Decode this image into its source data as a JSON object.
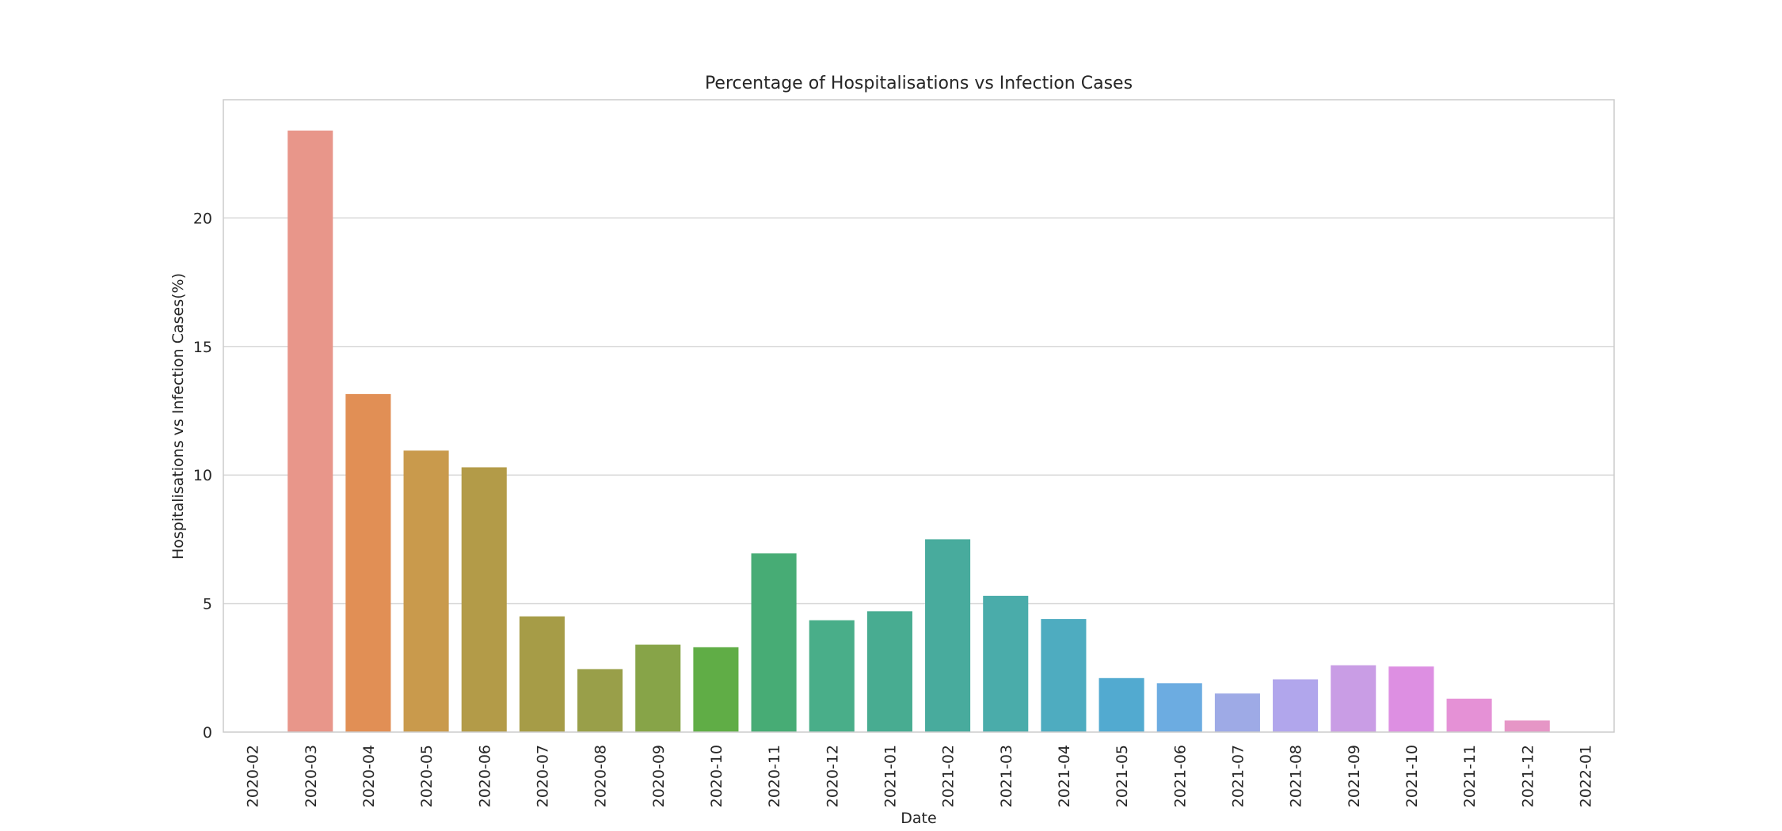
{
  "chart_data": {
    "type": "bar",
    "title": "Percentage of Hospitalisations vs Infection Cases",
    "xlabel": "Date",
    "ylabel": "Hospitalisations vs Infection Cases(%)",
    "ylim": [
      0,
      24.6
    ],
    "yticks": [
      "0",
      "5",
      "10",
      "15",
      "20"
    ],
    "grid": "horizontal",
    "categories": [
      "2020-02",
      "2020-03",
      "2020-04",
      "2020-05",
      "2020-06",
      "2020-07",
      "2020-08",
      "2020-09",
      "2020-10",
      "2020-11",
      "2020-12",
      "2021-01",
      "2021-02",
      "2021-03",
      "2021-04",
      "2021-05",
      "2021-06",
      "2021-07",
      "2021-08",
      "2021-09",
      "2021-10",
      "2021-11",
      "2021-12",
      "2022-01"
    ],
    "values": [
      0.0,
      23.4,
      13.15,
      10.95,
      10.3,
      4.5,
      2.45,
      3.4,
      3.3,
      6.95,
      4.35,
      4.7,
      7.5,
      5.3,
      4.4,
      2.1,
      1.9,
      1.5,
      2.05,
      2.6,
      2.55,
      1.3,
      0.45,
      0.0
    ],
    "colors": [
      "#ea9688",
      "#e8968a",
      "#e18f55",
      "#c99a4c",
      "#b39b48",
      "#a69c47",
      "#999f49",
      "#87a448",
      "#60ad46",
      "#47ac75",
      "#49ae89",
      "#48ac91",
      "#48ab9d",
      "#4aacaa",
      "#4eacc0",
      "#52aad0",
      "#6cace1",
      "#9eaae6",
      "#b1a6ec",
      "#c99de5",
      "#dd8fe2",
      "#e591d6",
      "#e696c6",
      "#e89ab8"
    ]
  }
}
